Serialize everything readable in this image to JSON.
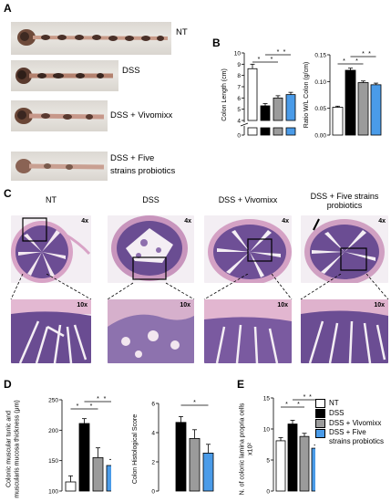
{
  "panels": {
    "a": {
      "label": "A",
      "groups": [
        {
          "name": "NT"
        },
        {
          "name": "DSS"
        },
        {
          "name": "DSS + Vivomixx"
        },
        {
          "name": "DSS + Five\nstrains probiotics"
        }
      ]
    },
    "b": {
      "label": "B"
    },
    "c": {
      "label": "C",
      "titles": [
        "NT",
        "DSS",
        "DSS + Vivomixx",
        "DSS + Five strains\nprobiotics"
      ],
      "mag_low": "4x",
      "mag_high": "10x"
    },
    "d": {
      "label": "D"
    },
    "e": {
      "label": "E"
    }
  },
  "legend": {
    "items": [
      {
        "label": "NT",
        "color": "#ffffff"
      },
      {
        "label": "DSS",
        "color": "#000000"
      },
      {
        "label": "DSS + Vivomixx",
        "color": "#9b9b9b"
      },
      {
        "label": "DSS + Five\nstrains probiotics",
        "color": "#4a9be8"
      }
    ]
  },
  "colors": {
    "nt": "#ffffff",
    "dss": "#000000",
    "vivomixx": "#9b9b9b",
    "five": "#4a9be8",
    "stain_deep": "#5a3f86",
    "stain_pink": "#d9a3c4"
  },
  "chart_data": [
    {
      "id": "colon-length",
      "type": "bar",
      "ylabel": "Colon Length (cm)",
      "categories": [
        "NT",
        "DSS",
        "DSS + Vivomixx",
        "DSS + Five strains probiotics"
      ],
      "values": [
        8.6,
        5.3,
        6.0,
        6.3
      ],
      "errors": [
        0.4,
        0.2,
        0.2,
        0.2
      ],
      "yticks": [
        0,
        4,
        5,
        6,
        7,
        8,
        9,
        10
      ],
      "ylim": [
        0,
        10
      ],
      "broken_axis": [
        0.4,
        4
      ],
      "significance": [
        "*",
        "*",
        "*",
        "*"
      ]
    },
    {
      "id": "ratio-wl",
      "type": "bar",
      "ylabel": "Ratio W/L Colon (g/cm)",
      "categories": [
        "NT",
        "DSS",
        "DSS + Vivomixx",
        "DSS + Five strains probiotics"
      ],
      "values": [
        0.052,
        0.121,
        0.098,
        0.094
      ],
      "errors": [
        0.002,
        0.004,
        0.003,
        0.003
      ],
      "yticks": [
        "0.00",
        "0.05",
        "0.10",
        "0.15"
      ],
      "ylim": [
        0,
        0.15
      ],
      "significance": [
        "*",
        "*",
        "*",
        "*"
      ]
    },
    {
      "id": "muscular-thickness",
      "type": "bar",
      "ylabel": "Colonic muscular tunic and\nmuscularis mucosa thickness (μm)",
      "categories": [
        "NT",
        "DSS",
        "DSS + Vivomixx",
        "DSS + Five strains probiotics"
      ],
      "values": [
        115,
        211,
        155,
        142
      ],
      "errors": [
        10,
        8,
        16,
        10
      ],
      "yticks": [
        100,
        150,
        200,
        250
      ],
      "ylim": [
        100,
        250
      ],
      "significance": [
        "*",
        "*",
        "*",
        "*"
      ]
    },
    {
      "id": "histological-score",
      "type": "bar",
      "ylabel": "Colon Histological Score",
      "categories": [
        "NT",
        "DSS",
        "DSS + Vivomixx",
        "DSS + Five strains probiotics"
      ],
      "values": [
        0.0,
        4.7,
        3.6,
        2.6
      ],
      "errors": [
        0.0,
        0.4,
        0.6,
        0.6
      ],
      "yticks": [
        0,
        2,
        4,
        6
      ],
      "ylim": [
        0,
        6
      ],
      "significance": [
        "*"
      ]
    },
    {
      "id": "lamina-propria",
      "type": "bar",
      "ylabel": "N. of colonic lamina propria cells\nx10²",
      "categories": [
        "NT",
        "DSS",
        "DSS + Vivomixx",
        "DSS + Five strains probiotics"
      ],
      "values": [
        8.1,
        10.8,
        8.8,
        6.9
      ],
      "errors": [
        0.5,
        0.6,
        0.5,
        0.5
      ],
      "yticks": [
        0,
        5,
        10,
        15
      ],
      "ylim": [
        0,
        15
      ],
      "significance": [
        "*",
        "*",
        "*",
        "*"
      ]
    }
  ]
}
